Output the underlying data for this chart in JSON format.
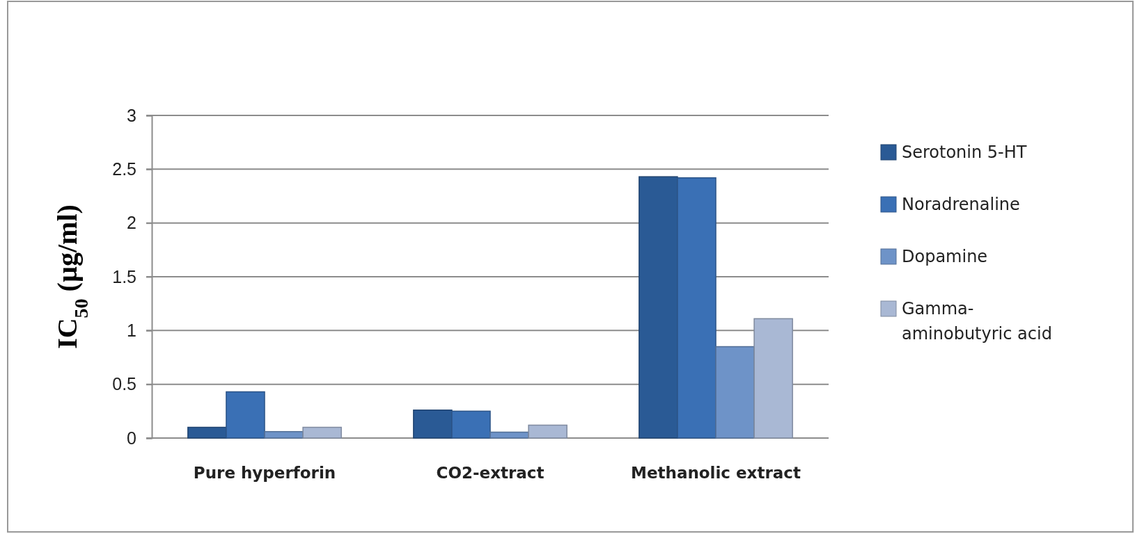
{
  "chart_data": {
    "type": "bar",
    "ylabel": "IC$_{50}$ (µg/ml)",
    "categories": [
      "Pure hyperforin",
      "CO2-extract",
      "Methanolic extract"
    ],
    "series": [
      {
        "name": "Serotonin 5-HT",
        "color": "#2a5a95",
        "values": [
          0.1,
          0.26,
          2.43
        ]
      },
      {
        "name": "Noradrenaline",
        "color": "#3a70b5",
        "values": [
          0.43,
          0.25,
          2.42
        ]
      },
      {
        "name": "Dopamine",
        "color": "#6e93c8",
        "values": [
          0.06,
          0.055,
          0.85
        ]
      },
      {
        "name": "Gamma-aminobutyric acid",
        "color": "#a9b8d4",
        "values": [
          0.1,
          0.12,
          1.11
        ]
      }
    ],
    "ylim": [
      0,
      3
    ],
    "yticks": [
      0,
      0.5,
      1,
      1.5,
      2,
      2.5,
      3
    ],
    "grid": "y",
    "legend": "right"
  }
}
